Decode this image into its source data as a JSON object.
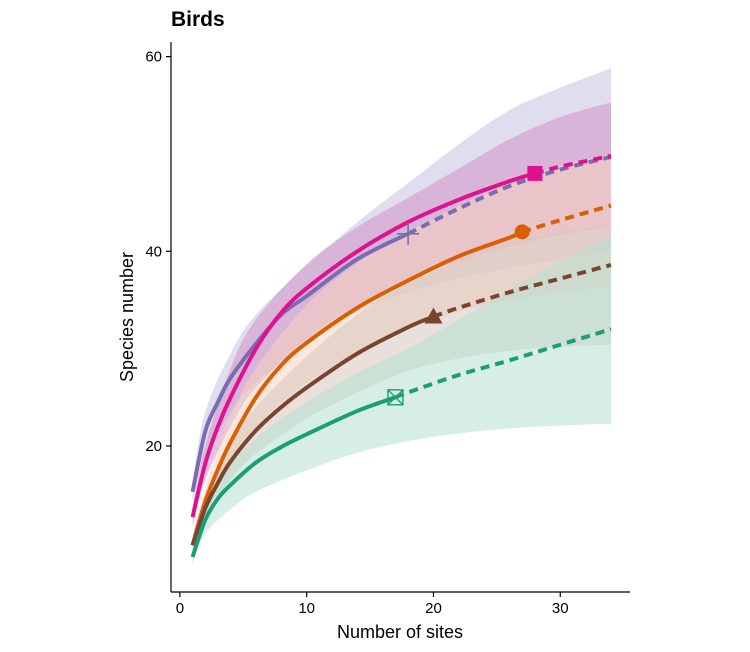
{
  "chart_data": {
    "type": "line",
    "title": "Birds",
    "xlabel": "Number of sites",
    "ylabel": "Species number",
    "xlim": [
      -0.7,
      35.5
    ],
    "ylim": [
      5,
      61.5
    ],
    "x_ticks": [
      0,
      10,
      20,
      30
    ],
    "y_ticks": [
      20,
      40,
      60
    ],
    "grid": false,
    "legend": "none",
    "series": [
      {
        "color": "#7a6cb0",
        "band_color": "#c7c3e0",
        "marker": "plus",
        "observed_n": 18,
        "points": [
          [
            1,
            15.3
          ],
          [
            2,
            21.5
          ],
          [
            3,
            24.5
          ],
          [
            4,
            27.0
          ],
          [
            6,
            30.5
          ],
          [
            8,
            33.5
          ],
          [
            10,
            35.4
          ],
          [
            14,
            39.2
          ],
          [
            18,
            41.8
          ],
          [
            22,
            44.4
          ],
          [
            26,
            46.7
          ],
          [
            30,
            48.4
          ],
          [
            34,
            49.7
          ]
        ],
        "lower": [
          [
            1,
            14.3
          ],
          [
            2,
            19.0
          ],
          [
            4,
            23.5
          ],
          [
            6,
            26.5
          ],
          [
            10,
            30.5
          ],
          [
            14,
            33.8
          ],
          [
            18,
            35.8
          ],
          [
            22,
            37.2
          ],
          [
            26,
            38.3
          ],
          [
            30,
            39.2
          ],
          [
            34,
            40.0
          ]
        ],
        "upper": [
          [
            1,
            16.3
          ],
          [
            2,
            23.5
          ],
          [
            4,
            29.5
          ],
          [
            6,
            33.5
          ],
          [
            10,
            38.5
          ],
          [
            14,
            43.0
          ],
          [
            18,
            47.0
          ],
          [
            22,
            51.0
          ],
          [
            26,
            54.5
          ],
          [
            30,
            56.8
          ],
          [
            34,
            58.8
          ]
        ]
      },
      {
        "color": "#e0118e",
        "band_color": "#cf92c7",
        "marker": "square",
        "observed_n": 28,
        "points": [
          [
            1,
            12.7
          ],
          [
            2,
            18.2
          ],
          [
            3,
            22.0
          ],
          [
            4,
            25.0
          ],
          [
            6,
            30.0
          ],
          [
            8,
            33.7
          ],
          [
            10,
            36.2
          ],
          [
            14,
            40.0
          ],
          [
            18,
            43.0
          ],
          [
            22,
            45.3
          ],
          [
            26,
            47.2
          ],
          [
            28,
            48.0
          ],
          [
            30,
            48.7
          ],
          [
            34,
            49.8
          ]
        ],
        "lower": [
          [
            1,
            11.8
          ],
          [
            2,
            16.5
          ],
          [
            4,
            22.0
          ],
          [
            6,
            26.0
          ],
          [
            10,
            31.0
          ],
          [
            14,
            34.5
          ],
          [
            18,
            37.0
          ],
          [
            22,
            39.0
          ],
          [
            26,
            40.5
          ],
          [
            30,
            41.7
          ],
          [
            34,
            42.5
          ]
        ],
        "upper": [
          [
            1,
            13.7
          ],
          [
            2,
            20.0
          ],
          [
            4,
            28.0
          ],
          [
            6,
            33.0
          ],
          [
            10,
            38.7
          ],
          [
            14,
            42.5
          ],
          [
            18,
            45.5
          ],
          [
            22,
            48.5
          ],
          [
            26,
            51.5
          ],
          [
            30,
            53.8
          ],
          [
            34,
            55.3
          ]
        ]
      },
      {
        "color": "#d95f02",
        "band_color": "#f7d3bd",
        "marker": "circle",
        "observed_n": 27,
        "points": [
          [
            1,
            9.8
          ],
          [
            2,
            14.3
          ],
          [
            3,
            17.6
          ],
          [
            4,
            20.4
          ],
          [
            6,
            25.0
          ],
          [
            8,
            28.3
          ],
          [
            10,
            30.6
          ],
          [
            14,
            34.2
          ],
          [
            18,
            37.0
          ],
          [
            22,
            39.5
          ],
          [
            26,
            41.4
          ],
          [
            27,
            42.0
          ],
          [
            30,
            43.2
          ],
          [
            34,
            44.7
          ]
        ],
        "lower": [
          [
            1,
            9.0
          ],
          [
            2,
            13.0
          ],
          [
            4,
            18.0
          ],
          [
            6,
            22.0
          ],
          [
            10,
            26.5
          ],
          [
            14,
            29.5
          ],
          [
            18,
            32.0
          ],
          [
            22,
            33.8
          ],
          [
            26,
            35.0
          ],
          [
            30,
            35.8
          ],
          [
            34,
            36.4
          ]
        ],
        "upper": [
          [
            1,
            10.8
          ],
          [
            2,
            15.8
          ],
          [
            4,
            23.0
          ],
          [
            6,
            28.0
          ],
          [
            10,
            34.5
          ],
          [
            14,
            38.8
          ],
          [
            18,
            42.0
          ],
          [
            22,
            44.7
          ],
          [
            26,
            47.0
          ],
          [
            30,
            48.8
          ],
          [
            34,
            50.0
          ]
        ]
      },
      {
        "color": "#7a4430",
        "band_color": "#d7c6c0",
        "marker": "triangle",
        "observed_n": 20,
        "points": [
          [
            1,
            9.8
          ],
          [
            2,
            13.6
          ],
          [
            3,
            16.2
          ],
          [
            4,
            18.4
          ],
          [
            6,
            21.6
          ],
          [
            8,
            24.0
          ],
          [
            10,
            26.0
          ],
          [
            14,
            29.5
          ],
          [
            18,
            32.2
          ],
          [
            20,
            33.3
          ],
          [
            22,
            34.2
          ],
          [
            26,
            35.8
          ],
          [
            30,
            37.2
          ],
          [
            34,
            38.6
          ]
        ],
        "lower": [
          [
            1,
            9.0
          ],
          [
            2,
            12.5
          ],
          [
            4,
            16.5
          ],
          [
            6,
            19.2
          ],
          [
            10,
            22.8
          ],
          [
            14,
            25.5
          ],
          [
            18,
            27.7
          ],
          [
            22,
            29.0
          ],
          [
            26,
            29.8
          ],
          [
            30,
            30.2
          ],
          [
            34,
            30.4
          ]
        ],
        "upper": [
          [
            1,
            10.6
          ],
          [
            2,
            14.8
          ],
          [
            4,
            20.3
          ],
          [
            6,
            24.0
          ],
          [
            10,
            29.2
          ],
          [
            14,
            33.5
          ],
          [
            18,
            36.7
          ],
          [
            22,
            39.0
          ],
          [
            26,
            40.8
          ],
          [
            30,
            42.0
          ],
          [
            34,
            42.6
          ]
        ]
      },
      {
        "color": "#1b9e77",
        "band_color": "#b7e0d0",
        "marker": "square-cross",
        "observed_n": 17,
        "points": [
          [
            1,
            8.6
          ],
          [
            2,
            12.4
          ],
          [
            3,
            14.6
          ],
          [
            4,
            16.0
          ],
          [
            6,
            18.3
          ],
          [
            8,
            19.9
          ],
          [
            10,
            21.2
          ],
          [
            14,
            23.6
          ],
          [
            17,
            25.0
          ],
          [
            18,
            25.5
          ],
          [
            22,
            27.3
          ],
          [
            26,
            28.8
          ],
          [
            30,
            30.4
          ],
          [
            34,
            32.0
          ]
        ],
        "lower": [
          [
            1,
            7.9
          ],
          [
            2,
            11.0
          ],
          [
            4,
            13.5
          ],
          [
            6,
            15.3
          ],
          [
            10,
            17.5
          ],
          [
            14,
            19.3
          ],
          [
            18,
            20.5
          ],
          [
            22,
            21.3
          ],
          [
            26,
            21.8
          ],
          [
            30,
            22.1
          ],
          [
            34,
            22.3
          ]
        ],
        "upper": [
          [
            1,
            9.3
          ],
          [
            2,
            13.5
          ],
          [
            4,
            18.0
          ],
          [
            6,
            20.8
          ],
          [
            10,
            24.5
          ],
          [
            14,
            27.5
          ],
          [
            18,
            30.0
          ],
          [
            22,
            33.0
          ],
          [
            26,
            36.0
          ],
          [
            30,
            39.0
          ],
          [
            34,
            41.5
          ]
        ]
      }
    ]
  }
}
